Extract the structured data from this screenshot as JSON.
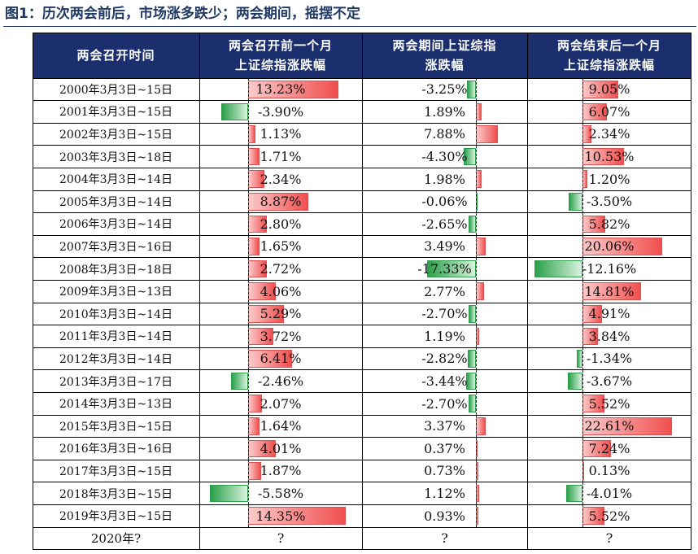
{
  "title": "图1：历次两会前后，市场涨多跌少；两会期间，摇摆不定",
  "table": {
    "headers": {
      "date": "两会召开时间",
      "before": [
        "两会召开前一个月",
        "上证综指涨跌幅"
      ],
      "during": [
        "两会期间上证综指",
        "涨跌幅"
      ],
      "after": [
        "两会结束后一个月",
        "上证综指涨跌幅"
      ]
    },
    "footer": {
      "date": "2020年?",
      "before": "?",
      "during": "?",
      "after": "?"
    }
  },
  "chart_data": {
    "type": "table",
    "title": "图1：历次两会前后，市场涨多跌少；两会期间，摇摆不定",
    "unit": "%",
    "categories": [
      "2000年3月3日~15日",
      "2001年3月3日~15日",
      "2002年3月3日~15日",
      "2003年3月3日~18日",
      "2004年3月3日~14日",
      "2005年3月3日~14日",
      "2006年3月3日~14日",
      "2007年3月3日~16日",
      "2008年3月3日~18日",
      "2009年3月3日~13日",
      "2010年3月3日~14日",
      "2011年3月3日~14日",
      "2012年3月3日~14日",
      "2013年3月3日~17日",
      "2014年3月3日~13日",
      "2015年3月3日~15日",
      "2016年3月3日~16日",
      "2017年3月3日~15日",
      "2018年3月3日~15日",
      "2019年3月3日~15日"
    ],
    "series": [
      {
        "name": "两会召开前一个月上证综指涨跌幅",
        "scale_max": 15.5,
        "values": [
          13.23,
          -3.9,
          1.13,
          1.71,
          2.34,
          8.87,
          2.8,
          1.65,
          2.72,
          4.06,
          5.29,
          3.72,
          6.41,
          -2.46,
          2.07,
          1.64,
          4.01,
          1.87,
          -5.58,
          14.35
        ]
      },
      {
        "name": "两会期间上证综指涨跌幅",
        "scale_max": 17.4,
        "values": [
          -3.25,
          1.89,
          7.88,
          -4.3,
          1.98,
          -0.06,
          -2.65,
          3.49,
          -17.33,
          2.77,
          -2.7,
          1.19,
          -2.82,
          -3.44,
          -2.7,
          3.37,
          0.37,
          0.73,
          1.12,
          0.93
        ]
      },
      {
        "name": "两会结束后一个月上证综指涨跌幅",
        "scale_max": 23.0,
        "values": [
          9.05,
          6.07,
          2.34,
          10.53,
          1.2,
          -3.5,
          5.82,
          20.06,
          -12.16,
          14.81,
          4.91,
          3.84,
          -1.34,
          -3.67,
          5.52,
          22.61,
          7.24,
          0.13,
          -4.01,
          5.52
        ]
      }
    ],
    "value_labels": [
      [
        "13.23%",
        "-3.90%",
        "1.13%",
        "1.71%",
        "2.34%",
        "8.87%",
        "2.80%",
        "1.65%",
        "2.72%",
        "4.06%",
        "5.29%",
        "3.72%",
        "6.41%",
        "-2.46%",
        "2.07%",
        "1.64%",
        "4.01%",
        "1.87%",
        "-5.58%",
        "14.35%"
      ],
      [
        "-3.25%",
        "1.89%",
        "7.88%",
        "-4.30%",
        "1.98%",
        "-0.06%",
        "-2.65%",
        "3.49%",
        "-17.33%",
        "2.77%",
        "-2.70%",
        "1.19%",
        "-2.82%",
        "-3.44%",
        "-2.70%",
        "3.37%",
        "0.37%",
        "0.73%",
        "1.12%",
        "0.93%"
      ],
      [
        "9.05%",
        "6.07%",
        "2.34%",
        "10.53%",
        "1.20%",
        "-3.50%",
        "5.82%",
        "20.06%",
        "-12.16%",
        "14.81%",
        "4.91%",
        "3.84%",
        "-1.34%",
        "-3.67%",
        "5.52%",
        "22.61%",
        "7.24%",
        "0.13%",
        "-4.01%",
        "5.52%"
      ]
    ],
    "colors": {
      "positive": "#f04f4f",
      "negative": "#2aa04a",
      "header_bg": "#1b2f6e",
      "header_text": "#ffffff",
      "title": "#1f3864"
    }
  }
}
